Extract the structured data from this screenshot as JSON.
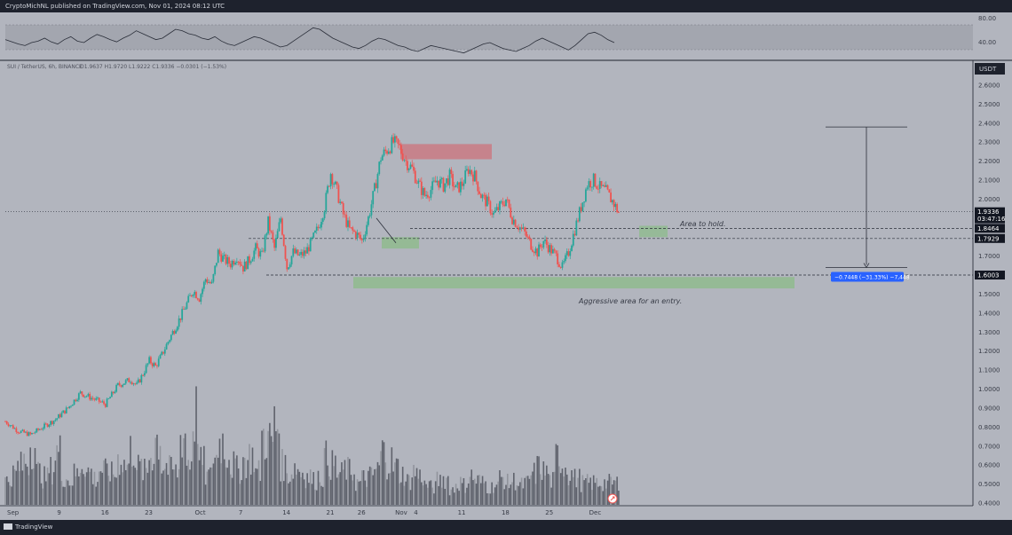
{
  "header": {
    "publisher_text": "CryptoMichNL published on TradingView.com, Nov 01, 2024 08:12 UTC"
  },
  "footer": {
    "brand": "TradingView"
  },
  "colors": {
    "up": "#26a69a",
    "down": "#ef5350",
    "panel_bg": "#b2b5be",
    "page_bg": "#1e222d",
    "text": "#363a45"
  },
  "chart_data": [
    {
      "type": "candlestick",
      "title": "SUI / TetherUS, 6h, BINANCE",
      "ohlc_text": "O1.9637 H1.9720 L1.9222 C1.9336 −0.0301 (−1.53%)",
      "currency": "USDT",
      "x_tick_labels": [
        "Sep",
        "9",
        "16",
        "23",
        "Oct",
        "7",
        "14",
        "21",
        "26",
        "Nov",
        "4",
        "11",
        "18",
        "25",
        "Dec"
      ],
      "y_tick_labels": [
        "2.6000",
        "2.5000",
        "2.4000",
        "2.3000",
        "2.2000",
        "2.1000",
        "2.0000",
        "1.9000",
        "1.8000",
        "1.7000",
        "1.6000",
        "1.5000",
        "1.4000",
        "1.3000",
        "1.2000",
        "1.1000",
        "1.0000",
        "0.9000",
        "0.8000",
        "0.7000",
        "0.6000",
        "0.5000",
        "0.4000"
      ],
      "ylim": [
        0.4,
        2.65
      ],
      "price_labels": [
        {
          "value": 1.9336,
          "text": "1.9336",
          "sub": "03:47:16"
        },
        {
          "value": 1.8464,
          "text": "1.8464"
        },
        {
          "value": 1.7929,
          "text": "1.7929"
        },
        {
          "value": 1.6003,
          "text": "1.6003"
        }
      ],
      "annotations": {
        "area_to_hold": "Area to hold.",
        "aggressive_area": "Aggressive area for an entry.",
        "measure_label": "−0.7448 (−31.33%) −7,448"
      },
      "zones": {
        "resistance": [
          2.21,
          2.29
        ],
        "hold_box": [
          1.8,
          1.86
        ],
        "support_box_left": [
          1.74,
          1.8
        ],
        "aggressive": [
          1.53,
          1.59
        ],
        "measure_top": 2.38,
        "measure_bottom": 1.64
      },
      "price_path": [
        [
          0,
          0.83
        ],
        [
          2,
          0.78
        ],
        [
          4,
          0.76
        ],
        [
          6,
          0.8
        ],
        [
          8,
          0.84
        ],
        [
          10,
          0.9
        ],
        [
          12,
          0.98
        ],
        [
          14,
          0.95
        ],
        [
          16,
          0.92
        ],
        [
          18,
          1.02
        ],
        [
          20,
          1.05
        ],
        [
          21,
          1.02
        ],
        [
          22,
          1.08
        ],
        [
          23,
          1.15
        ],
        [
          24,
          1.12
        ],
        [
          25,
          1.18
        ],
        [
          26,
          1.25
        ],
        [
          28,
          1.38
        ],
        [
          30,
          1.52
        ],
        [
          31,
          1.48
        ],
        [
          32,
          1.58
        ],
        [
          33,
          1.55
        ],
        [
          34,
          1.72
        ],
        [
          35,
          1.68
        ],
        [
          36,
          1.66
        ],
        [
          37,
          1.7
        ],
        [
          38,
          1.64
        ],
        [
          39,
          1.68
        ],
        [
          40,
          1.74
        ],
        [
          41,
          1.7
        ],
        [
          42,
          1.88
        ],
        [
          43,
          1.74
        ],
        [
          44,
          1.9
        ],
        [
          45,
          1.64
        ],
        [
          46,
          1.72
        ],
        [
          47,
          1.7
        ],
        [
          48,
          1.72
        ],
        [
          49,
          1.78
        ],
        [
          50,
          1.85
        ],
        [
          51,
          1.96
        ],
        [
          52,
          2.14
        ],
        [
          53,
          2.04
        ],
        [
          54,
          1.92
        ],
        [
          55,
          1.84
        ],
        [
          56,
          1.82
        ],
        [
          57,
          1.78
        ],
        [
          58,
          1.9
        ],
        [
          59,
          2.05
        ],
        [
          60,
          2.22
        ],
        [
          61,
          2.26
        ],
        [
          62,
          2.3
        ],
        [
          63,
          2.27
        ],
        [
          64,
          2.2
        ],
        [
          65,
          2.16
        ],
        [
          66,
          2.08
        ],
        [
          67,
          2.02
        ],
        [
          68,
          2.05
        ],
        [
          69,
          2.1
        ],
        [
          70,
          2.07
        ],
        [
          71,
          2.12
        ],
        [
          72,
          2.05
        ],
        [
          73,
          2.08
        ],
        [
          74,
          2.16
        ],
        [
          75,
          2.12
        ],
        [
          76,
          2.02
        ],
        [
          77,
          1.98
        ],
        [
          78,
          1.92
        ],
        [
          79,
          1.96
        ],
        [
          80,
          2.0
        ],
        [
          81,
          1.9
        ],
        [
          82,
          1.86
        ],
        [
          83,
          1.82
        ],
        [
          84,
          1.76
        ],
        [
          85,
          1.72
        ],
        [
          86,
          1.78
        ],
        [
          87,
          1.74
        ],
        [
          88,
          1.7
        ],
        [
          89,
          1.64
        ],
        [
          90,
          1.72
        ],
        [
          91,
          1.84
        ],
        [
          92,
          1.96
        ],
        [
          93,
          2.08
        ],
        [
          94,
          2.1
        ],
        [
          95,
          2.06
        ],
        [
          96,
          2.04
        ],
        [
          97,
          1.99
        ],
        [
          98,
          1.93
        ]
      ],
      "x_day_ticks": [
        0,
        8,
        15,
        22,
        30,
        37,
        44,
        51,
        56,
        62,
        65,
        72,
        79,
        86,
        93
      ],
      "volume_hint": [
        0.22,
        0.28,
        0.35,
        0.4,
        0.55,
        0.3,
        0.25,
        0.32,
        0.48,
        0.26,
        0.22,
        0.28,
        0.38,
        0.3,
        0.24,
        0.32,
        0.3,
        0.28,
        0.42,
        0.36,
        0.5,
        0.34,
        0.3,
        0.46,
        0.6,
        0.36,
        0.32,
        0.3,
        0.64,
        0.4,
        0.82,
        0.38,
        0.26,
        0.42,
        0.58,
        0.48,
        0.36,
        0.32,
        0.4,
        0.44,
        0.3,
        0.62,
        0.58,
        0.72,
        0.36,
        0.28,
        0.34,
        0.3,
        0.26,
        0.22,
        0.26,
        0.42,
        0.36,
        0.28,
        0.32,
        0.3,
        0.2,
        0.24,
        0.26,
        0.32,
        0.48,
        0.4,
        0.34,
        0.28,
        0.22,
        0.3,
        0.26,
        0.18,
        0.16,
        0.22,
        0.24,
        0.14,
        0.2,
        0.18,
        0.26,
        0.22,
        0.2,
        0.16,
        0.18,
        0.24,
        0.2,
        0.22,
        0.18,
        0.2,
        0.28,
        0.34,
        0.3,
        0.22,
        0.44,
        0.36,
        0.28,
        0.24,
        0.2
      ]
    },
    {
      "type": "line",
      "indicator": "RSI",
      "y_tick_labels": [
        "80.00",
        "40.00"
      ],
      "ylim": [
        30,
        90
      ],
      "upper_band": 70,
      "lower_band": 30,
      "values": [
        58,
        55,
        52,
        50,
        54,
        56,
        60,
        55,
        52,
        58,
        62,
        56,
        54,
        60,
        65,
        62,
        58,
        55,
        60,
        64,
        70,
        66,
        62,
        58,
        60,
        66,
        72,
        70,
        66,
        64,
        60,
        58,
        62,
        56,
        52,
        50,
        54,
        58,
        62,
        60,
        56,
        52,
        48,
        50,
        56,
        62,
        68,
        74,
        72,
        66,
        60,
        56,
        52,
        48,
        46,
        50,
        56,
        60,
        58,
        54,
        50,
        48,
        44,
        42,
        46,
        50,
        48,
        46,
        44,
        42,
        40,
        44,
        48,
        52,
        54,
        50,
        46,
        44,
        42,
        46,
        50,
        56,
        60,
        56,
        52,
        48,
        44,
        50,
        58,
        66,
        68,
        64,
        58,
        54
      ]
    }
  ]
}
